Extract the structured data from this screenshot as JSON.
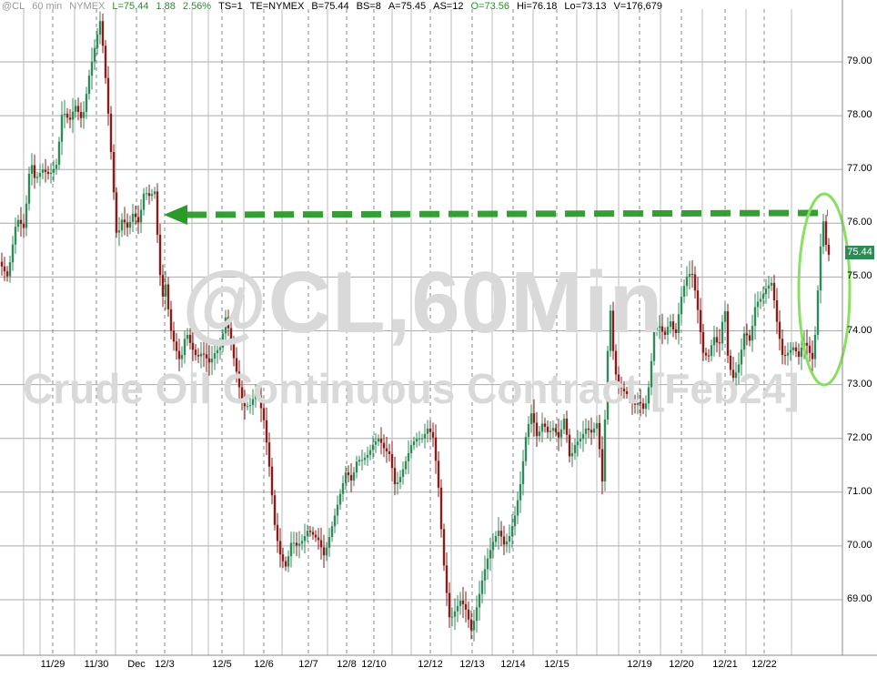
{
  "header": {
    "symbol": "@CL",
    "interval": "60 min",
    "exchange": "NYMEX",
    "last": "L=75.44",
    "change": "1.88",
    "change_pct": "2.56%",
    "ts": "TS=1",
    "te": "TE=NYMEX",
    "bid": "B=75.44",
    "bid_size": "BS=8",
    "ask": "A=75.45",
    "ask_size": "AS=12",
    "open": "O=73.56",
    "high": "Hi=76.18",
    "low": "Lo=73.13",
    "volume": "V=176,679"
  },
  "watermark": {
    "line1": "@CL,60Min",
    "line2": "Crude Oil Continuous Contract [Feb24]"
  },
  "last_price_label": "75.44",
  "colors": {
    "up": "#2e8b57",
    "down": "#8b1a1a",
    "arrow": "#2a9a2a",
    "ellipse": "#88e060",
    "grid": "#999999"
  },
  "chart_data": {
    "type": "candlestick",
    "title": "",
    "y_axis": {
      "min": 68.0,
      "max": 80.0,
      "ticks": [
        "69.00",
        "70.00",
        "71.00",
        "72.00",
        "73.00",
        "74.00",
        "75.00",
        "76.00",
        "77.00",
        "78.00",
        "79.00"
      ]
    },
    "x_ticks": [
      "11/29",
      "11/30",
      "Dec",
      "12/3",
      "12/5",
      "12/6",
      "12/7",
      "12/8",
      "12/10",
      "12/12",
      "12/13",
      "12/14",
      "12/15",
      "12/19",
      "12/20",
      "12/21",
      "12/22"
    ],
    "path_points": [
      [
        0,
        75.3
      ],
      [
        10,
        75.0
      ],
      [
        20,
        76.1
      ],
      [
        28,
        75.9
      ],
      [
        35,
        77.2
      ],
      [
        40,
        76.8
      ],
      [
        48,
        77.0
      ],
      [
        56,
        76.9
      ],
      [
        64,
        77.1
      ],
      [
        70,
        78.1
      ],
      [
        78,
        77.9
      ],
      [
        84,
        78.2
      ],
      [
        92,
        77.9
      ],
      [
        100,
        78.8
      ],
      [
        106,
        79.3
      ],
      [
        112,
        79.8
      ],
      [
        118,
        78.6
      ],
      [
        122,
        77.7
      ],
      [
        126,
        76.7
      ],
      [
        130,
        75.7
      ],
      [
        136,
        76.1
      ],
      [
        142,
        75.9
      ],
      [
        148,
        76.2
      ],
      [
        154,
        76.0
      ],
      [
        160,
        76.6
      ],
      [
        166,
        76.5
      ],
      [
        172,
        76.6
      ],
      [
        176,
        75.3
      ],
      [
        180,
        74.6
      ],
      [
        184,
        74.9
      ],
      [
        188,
        74.1
      ],
      [
        194,
        73.7
      ],
      [
        200,
        73.4
      ],
      [
        206,
        74.0
      ],
      [
        212,
        73.7
      ],
      [
        218,
        73.5
      ],
      [
        224,
        73.6
      ],
      [
        232,
        73.4
      ],
      [
        238,
        73.6
      ],
      [
        244,
        73.7
      ],
      [
        250,
        74.3
      ],
      [
        256,
        73.7
      ],
      [
        262,
        73.2
      ],
      [
        268,
        72.6
      ],
      [
        276,
        72.6
      ],
      [
        284,
        72.9
      ],
      [
        292,
        72.3
      ],
      [
        298,
        71.4
      ],
      [
        304,
        70.3
      ],
      [
        310,
        69.8
      ],
      [
        316,
        69.6
      ],
      [
        322,
        70.1
      ],
      [
        328,
        70.0
      ],
      [
        334,
        70.1
      ],
      [
        340,
        70.3
      ],
      [
        346,
        70.2
      ],
      [
        352,
        70.1
      ],
      [
        358,
        69.8
      ],
      [
        364,
        70.2
      ],
      [
        370,
        70.6
      ],
      [
        376,
        71.0
      ],
      [
        382,
        71.4
      ],
      [
        388,
        71.2
      ],
      [
        394,
        71.6
      ],
      [
        400,
        71.6
      ],
      [
        406,
        71.7
      ],
      [
        412,
        71.9
      ],
      [
        418,
        72.0
      ],
      [
        424,
        71.8
      ],
      [
        430,
        71.7
      ],
      [
        436,
        71.1
      ],
      [
        442,
        71.3
      ],
      [
        448,
        71.6
      ],
      [
        454,
        71.9
      ],
      [
        460,
        72.0
      ],
      [
        466,
        72.0
      ],
      [
        472,
        72.2
      ],
      [
        478,
        72.0
      ],
      [
        484,
        71.0
      ],
      [
        488,
        69.9
      ],
      [
        492,
        69.2
      ],
      [
        496,
        68.6
      ],
      [
        502,
        68.8
      ],
      [
        508,
        69.0
      ],
      [
        514,
        68.8
      ],
      [
        520,
        68.4
      ],
      [
        526,
        68.9
      ],
      [
        532,
        69.4
      ],
      [
        538,
        69.8
      ],
      [
        544,
        70.1
      ],
      [
        550,
        70.3
      ],
      [
        556,
        70.0
      ],
      [
        562,
        70.2
      ],
      [
        568,
        70.6
      ],
      [
        574,
        71.2
      ],
      [
        580,
        72.1
      ],
      [
        586,
        72.5
      ],
      [
        592,
        72.0
      ],
      [
        598,
        72.3
      ],
      [
        604,
        72.1
      ],
      [
        610,
        72.2
      ],
      [
        616,
        72.0
      ],
      [
        622,
        72.4
      ],
      [
        628,
        71.6
      ],
      [
        634,
        71.9
      ],
      [
        640,
        72.0
      ],
      [
        646,
        72.2
      ],
      [
        652,
        72.1
      ],
      [
        658,
        72.3
      ],
      [
        664,
        71.1
      ],
      [
        668,
        73.1
      ],
      [
        672,
        74.5
      ],
      [
        676,
        73.5
      ],
      [
        680,
        73.0
      ],
      [
        686,
        72.9
      ],
      [
        692,
        72.8
      ],
      [
        698,
        72.6
      ],
      [
        704,
        72.7
      ],
      [
        710,
        72.5
      ],
      [
        716,
        73.1
      ],
      [
        720,
        74.0
      ],
      [
        726,
        74.1
      ],
      [
        732,
        73.9
      ],
      [
        738,
        74.2
      ],
      [
        744,
        73.9
      ],
      [
        750,
        74.6
      ],
      [
        756,
        75.0
      ],
      [
        762,
        75.1
      ],
      [
        766,
        74.7
      ],
      [
        770,
        74.2
      ],
      [
        774,
        73.6
      ],
      [
        780,
        73.5
      ],
      [
        786,
        73.9
      ],
      [
        792,
        73.7
      ],
      [
        798,
        74.5
      ],
      [
        802,
        73.4
      ],
      [
        808,
        73.1
      ],
      [
        814,
        73.4
      ],
      [
        820,
        74.0
      ],
      [
        826,
        73.8
      ],
      [
        832,
        74.5
      ],
      [
        838,
        74.6
      ],
      [
        844,
        74.8
      ],
      [
        850,
        74.9
      ],
      [
        856,
        74.1
      ],
      [
        862,
        73.5
      ],
      [
        868,
        73.6
      ],
      [
        874,
        73.7
      ],
      [
        880,
        73.5
      ],
      [
        884,
        73.8
      ],
      [
        890,
        73.7
      ],
      [
        894,
        73.4
      ],
      [
        898,
        74.0
      ],
      [
        901,
        74.9
      ],
      [
        904,
        75.7
      ],
      [
        907,
        76.1
      ],
      [
        910,
        75.5
      ],
      [
        913,
        75.4
      ]
    ]
  }
}
